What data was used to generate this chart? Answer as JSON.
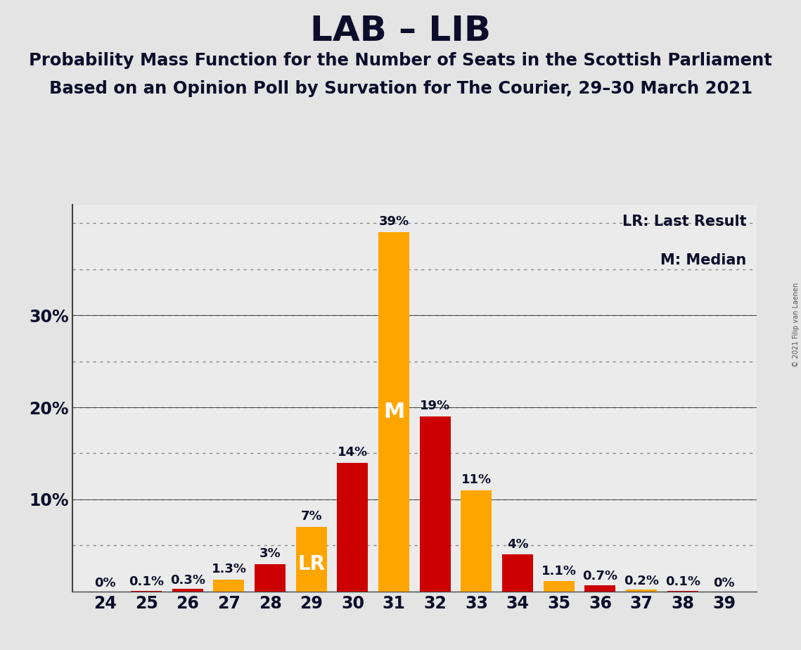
{
  "title": "LAB – LIB",
  "subtitle1": "Probability Mass Function for the Number of Seats in the Scottish Parliament",
  "subtitle2": "Based on an Opinion Poll by Survation for The Courier, 29–30 March 2021",
  "copyright": "© 2021 Filip van Laenen",
  "seats": [
    24,
    25,
    26,
    27,
    28,
    29,
    30,
    31,
    32,
    33,
    34,
    35,
    36,
    37,
    38,
    39
  ],
  "values": [
    0.0,
    0.1,
    0.3,
    1.3,
    3.0,
    7.0,
    14.0,
    39.0,
    19.0,
    11.0,
    4.0,
    1.1,
    0.7,
    0.2,
    0.1,
    0.0
  ],
  "bar_colors": [
    "#FFA500",
    "#CC0000",
    "#CC0000",
    "#FFA500",
    "#CC0000",
    "#FFA500",
    "#CC0000",
    "#FFA500",
    "#CC0000",
    "#FFA500",
    "#CC0000",
    "#FFA500",
    "#CC0000",
    "#FFA500",
    "#CC0000",
    "#FFA500"
  ],
  "labels": [
    "0%",
    "0.1%",
    "0.3%",
    "1.3%",
    "3%",
    "7%",
    "14%",
    "39%",
    "19%",
    "11%",
    "4%",
    "1.1%",
    "0.7%",
    "0.2%",
    "0.1%",
    "0%"
  ],
  "median_seat": 31,
  "lr_seat": 29,
  "legend_lr": "LR: Last Result",
  "legend_m": "M: Median",
  "ylim_max": 42,
  "background_color": "#E4E4E4",
  "plot_bg_color": "#EBEBEB",
  "orange_color": "#FFA500",
  "red_color": "#CC0000",
  "text_color": "#0D0D2B",
  "grid_dotted_color": "#888888",
  "label_fontsize": 13,
  "title_fontsize": 36,
  "subtitle_fontsize": 17.5,
  "tick_fontsize": 17,
  "legend_fontsize": 15
}
